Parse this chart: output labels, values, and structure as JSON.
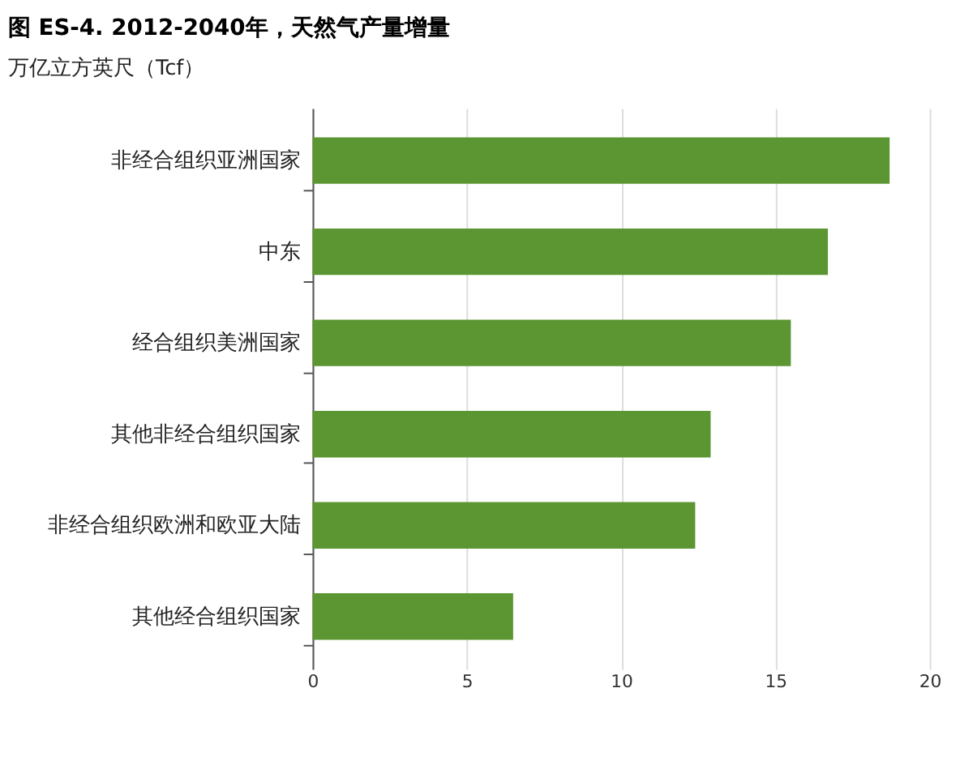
{
  "chart_data": {
    "type": "bar",
    "orientation": "horizontal",
    "title": "图 ES-4. 2012-2040年，天然气产量增量",
    "subtitle": "万亿立方英尺（Tcf）",
    "categories": [
      "非经合组织亚洲国家",
      "中东",
      "经合组织美洲国家",
      "其他非经合组织国家",
      "非经合组织欧洲和欧亚大陆",
      "其他经合组织国家"
    ],
    "values": [
      18.7,
      16.7,
      15.5,
      12.9,
      12.4,
      6.5
    ],
    "color": "#5b9632",
    "xlim": [
      0,
      20
    ],
    "xticks": [
      0,
      5,
      10,
      15,
      20
    ],
    "grid": "x"
  }
}
